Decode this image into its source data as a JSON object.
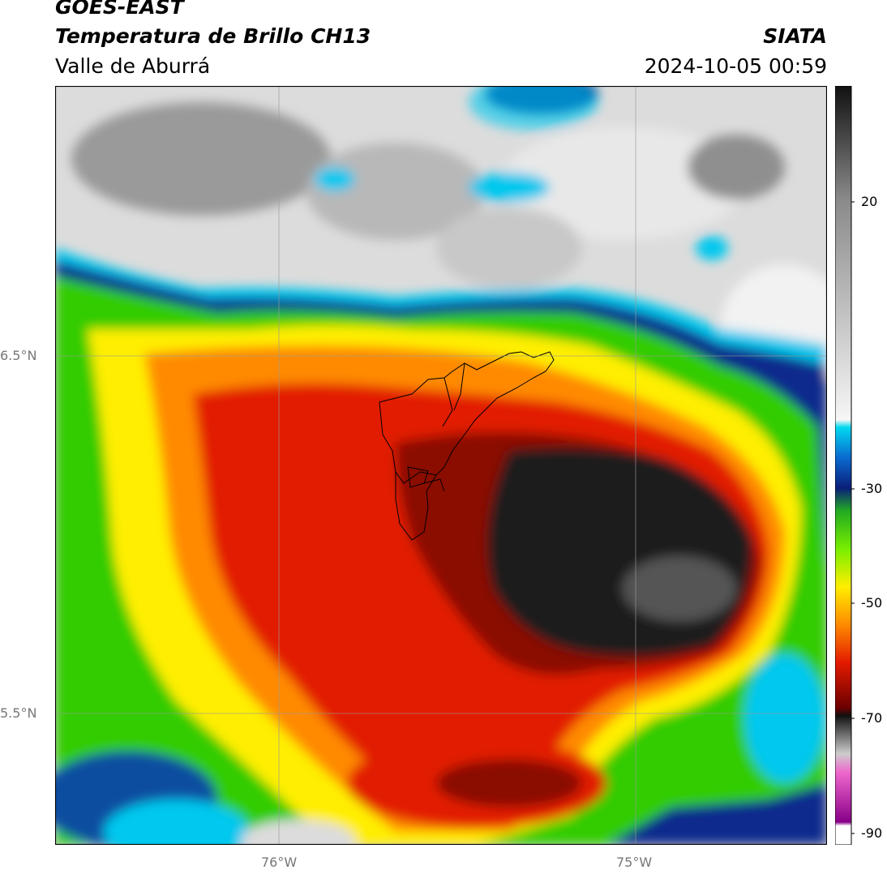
{
  "header": {
    "satellite": "GOES-EAST",
    "product": "Temperatura de Brillo CH13",
    "region": "Valle de Aburrá",
    "org": "SIATA",
    "datetime": "2024-10-05 00:59"
  },
  "map": {
    "lat_ticks": [
      "6.5°N",
      "5.5°N"
    ],
    "lon_ticks": [
      "76°W",
      "75°W"
    ],
    "variable": "brightness temperature",
    "overlay": "municipal boundaries"
  },
  "colorbar": {
    "tick_labels": [
      "20",
      "-30",
      "-50",
      "-70",
      "-90"
    ],
    "range": [
      -92,
      37
    ]
  },
  "colors": {
    "warm_clouds": "#d9d9d9",
    "storm_core": "#222222",
    "red_band": "#e21a00",
    "yellow": "#ffee00",
    "green": "#33cc00",
    "blue_edge": "#0a2a8c",
    "cyan": "#00d8f0"
  }
}
